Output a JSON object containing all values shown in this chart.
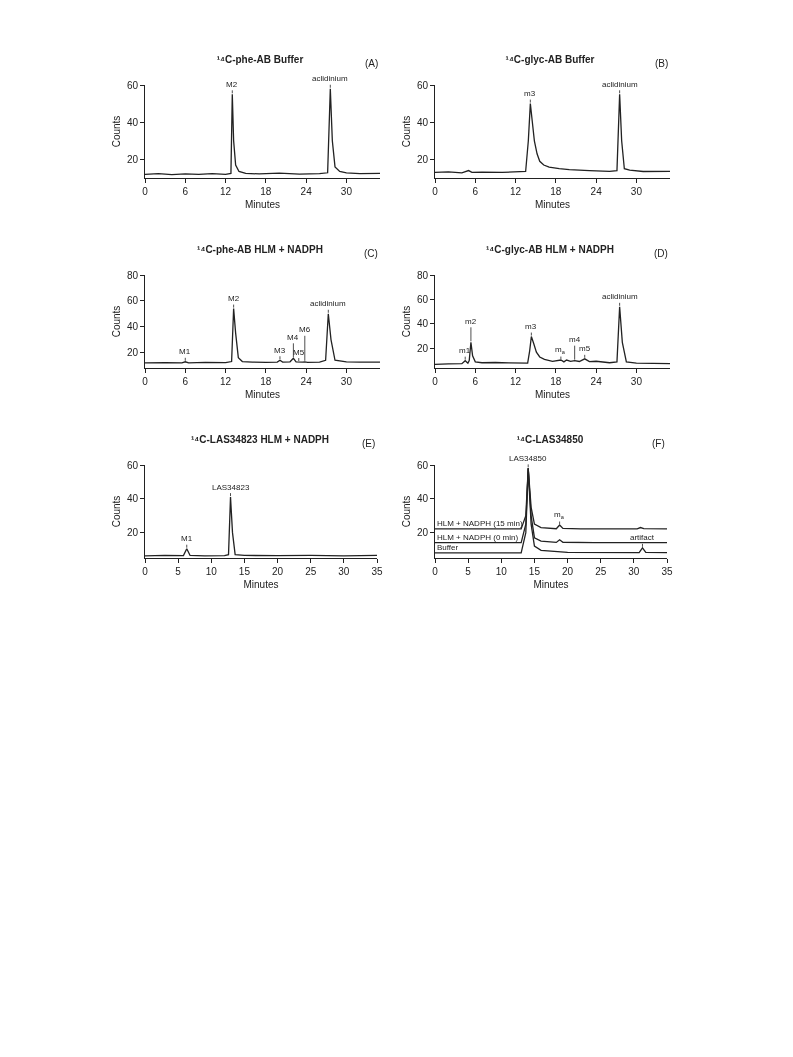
{
  "chart_data": [
    {
      "type": "line",
      "title": "¹⁴C-phe-AB Buffer",
      "xlabel": "Minutes",
      "ylabel": "Counts",
      "xlim": [
        0,
        35
      ],
      "xticks": [
        0,
        6,
        12,
        18,
        24,
        30
      ],
      "ylim": [
        10,
        60
      ],
      "yticks": [
        20,
        40,
        60
      ],
      "series": [
        {
          "color": "#222222",
          "x": [
            0,
            2,
            4,
            6,
            8,
            10,
            12,
            12.8,
            13.0,
            13.2,
            13.5,
            14,
            15,
            17,
            20,
            23,
            26,
            27.2,
            27.6,
            27.9,
            28.3,
            29,
            30,
            32,
            35
          ],
          "values": [
            12,
            12.3,
            11.8,
            12.2,
            12,
            12.3,
            12,
            12.5,
            55,
            30,
            17,
            13.5,
            12.5,
            12.2,
            12.6,
            12.1,
            12.3,
            12.8,
            58,
            30,
            16,
            13.5,
            12.8,
            12.3,
            12.5
          ]
        }
      ],
      "annotations": [
        "(A)",
        {
          "text": "M2",
          "x": 13.0,
          "y": 55
        },
        {
          "text": "aclidinium",
          "x": 27.6,
          "y": 58
        }
      ]
    },
    {
      "type": "line",
      "title": "¹⁴C-glyc-AB Buffer",
      "xlabel": "Minutes",
      "ylabel": "Counts",
      "xlim": [
        0,
        35
      ],
      "xticks": [
        0,
        6,
        12,
        18,
        24,
        30
      ],
      "ylim": [
        10,
        60
      ],
      "yticks": [
        20,
        40,
        60
      ],
      "series": [
        {
          "color": "#222222",
          "x": [
            0,
            2,
            4,
            5,
            5.5,
            7,
            10,
            13.5,
            13.9,
            14.2,
            14.5,
            14.8,
            15.2,
            15.6,
            16.2,
            17,
            18.5,
            20,
            23,
            26,
            27.1,
            27.5,
            27.8,
            28.2,
            29,
            31,
            35
          ],
          "values": [
            13,
            13.3,
            12.8,
            14,
            13,
            13.2,
            13,
            13.5,
            30,
            50,
            40,
            30,
            23,
            19,
            17,
            15.8,
            15,
            14.5,
            14,
            13.6,
            14,
            55,
            30,
            15,
            14.2,
            13.5,
            13.6
          ]
        }
      ],
      "annotations": [
        "(B)",
        {
          "text": "m3",
          "x": 14.2,
          "y": 50
        },
        {
          "text": "aclidinium",
          "x": 27.5,
          "y": 55
        }
      ]
    },
    {
      "type": "line",
      "title": "¹⁴C-phe-AB HLM + NADPH",
      "xlabel": "Minutes",
      "ylabel": "Counts",
      "xlim": [
        0,
        35
      ],
      "xticks": [
        0,
        6,
        12,
        18,
        24,
        30
      ],
      "ylim": [
        8,
        80
      ],
      "yticks": [
        20,
        40,
        60,
        80
      ],
      "series": [
        {
          "color": "#222222",
          "x": [
            0,
            3,
            5.5,
            6,
            6.5,
            9,
            12,
            12.9,
            13.2,
            13.5,
            13.9,
            14.5,
            16,
            18,
            19.7,
            20.1,
            20.5,
            21.6,
            22.1,
            22.5,
            23.5,
            23.8,
            24.2,
            26,
            26.9,
            27.3,
            27.7,
            28.3,
            30,
            32,
            35
          ],
          "values": [
            12,
            12.2,
            12,
            12.8,
            12,
            12.3,
            12.2,
            13,
            54,
            35,
            16,
            13,
            12.5,
            12.4,
            12.6,
            14,
            12.6,
            12.8,
            15.5,
            12.8,
            12.5,
            12.8,
            12.4,
            12.6,
            14,
            50,
            30,
            14,
            12.8,
            12.6,
            12.5
          ]
        }
      ],
      "annotations": [
        "(C)",
        {
          "text": "M1",
          "x": 6,
          "y": 12.8
        },
        {
          "text": "M2",
          "x": 13.2,
          "y": 54
        },
        {
          "text": "M3",
          "x": 20.1,
          "y": 14
        },
        {
          "text": "M4",
          "x": 22.1,
          "y": 15.5
        },
        {
          "text": "M5",
          "x": 22.9,
          "y": 12.6
        },
        {
          "text": "M6",
          "x": 23.8,
          "y": 12.8
        },
        {
          "text": "aclidinium",
          "x": 27.3,
          "y": 50
        }
      ]
    },
    {
      "type": "line",
      "title": "¹⁴C-glyc-AB HLM + NADPH",
      "xlabel": "Minutes",
      "ylabel": "Counts",
      "xlim": [
        0,
        35
      ],
      "xticks": [
        0,
        6,
        12,
        18,
        24,
        30
      ],
      "ylim": [
        4,
        80
      ],
      "yticks": [
        20,
        40,
        60,
        80
      ],
      "series": [
        {
          "color": "#222222",
          "x": [
            0,
            2,
            4,
            4.5,
            4.9,
            5.1,
            5.35,
            5.6,
            6,
            7,
            9,
            11,
            13.8,
            14.1,
            14.35,
            14.7,
            15.1,
            15.6,
            16.3,
            17.5,
            18.75,
            19.2,
            19.6,
            20.2,
            20.8,
            21.5,
            22.3,
            23,
            24,
            26,
            27.1,
            27.5,
            27.9,
            28.5,
            30,
            35
          ],
          "values": [
            7,
            7.3,
            7.5,
            10,
            8,
            10,
            25,
            14,
            9,
            8.3,
            8.5,
            8.2,
            8,
            18,
            29.7,
            24,
            17,
            13,
            11,
            9.5,
            10.5,
            9,
            10.5,
            9.5,
            10,
            9.3,
            11.5,
            9.2,
            9.5,
            8.3,
            9,
            54,
            25,
            9,
            8,
            7.5
          ]
        }
      ],
      "annotations": [
        "(D)",
        {
          "text": "m1",
          "x": 4.5,
          "y": 10
        },
        {
          "text": "m2",
          "x": 5.35,
          "y": 25
        },
        {
          "text": "m3",
          "x": 14.35,
          "y": 29.7
        },
        {
          "text": "m$_{a}$",
          "x": 18.75,
          "y": 10.5
        },
        {
          "text": "m4",
          "x": 20.8,
          "y": 10
        },
        {
          "text": "m5",
          "x": 22.3,
          "y": 11.5
        },
        {
          "text": "aclidinium",
          "x": 27.5,
          "y": 54
        }
      ]
    },
    {
      "type": "line",
      "title": "¹⁴C-LAS34823 HLM + NADPH",
      "xlabel": "Minutes",
      "ylabel": "Counts",
      "xlim": [
        0,
        35
      ],
      "xticks": [
        0,
        5,
        10,
        15,
        20,
        25,
        30,
        35
      ],
      "ylim": [
        5,
        60
      ],
      "yticks": [
        20,
        40,
        60
      ],
      "series": [
        {
          "color": "#222222",
          "x": [
            0,
            3,
            5.8,
            6.3,
            6.8,
            9,
            12,
            12.6,
            12.9,
            13.2,
            13.6,
            15,
            20,
            25,
            30,
            35
          ],
          "values": [
            6.3,
            6.5,
            6.4,
            10.5,
            6.5,
            6.3,
            6.4,
            7,
            41,
            20,
            7,
            6.5,
            6.4,
            6.5,
            6.3,
            6.5
          ]
        }
      ],
      "annotations": [
        "(E)",
        {
          "text": "M1",
          "x": 6.3,
          "y": 10.5
        },
        {
          "text": "LAS34823",
          "x": 12.9,
          "y": 41
        }
      ]
    },
    {
      "type": "line",
      "title": "¹⁴C-LAS34850",
      "xlabel": "Minutes",
      "ylabel": "Counts",
      "xlim": [
        0,
        35
      ],
      "xticks": [
        0,
        5,
        10,
        15,
        20,
        25,
        30,
        35
      ],
      "ylim": [
        5,
        60
      ],
      "yticks": [
        20,
        40,
        60
      ],
      "series": [
        {
          "name": "HLM + NADPH (15 min)",
          "color": "#222222",
          "x": [
            0,
            13,
            13.7,
            14.06,
            14.5,
            15,
            16,
            18.3,
            18.8,
            19.3,
            22,
            26,
            30.5,
            31,
            31.5,
            35
          ],
          "values": [
            22.2,
            22.2,
            30,
            58,
            35,
            25,
            23,
            22.3,
            24.5,
            22.5,
            22.2,
            22.2,
            22.2,
            23,
            22.4,
            22.2
          ]
        },
        {
          "name": "HLM + NADPH (0 min)",
          "color": "#222222",
          "x": [
            0,
            13,
            13.7,
            14.06,
            14.5,
            15,
            16,
            18.3,
            18.8,
            19.3,
            24,
            35
          ],
          "values": [
            14.1,
            14.1,
            25,
            58,
            30,
            17,
            15,
            14.2,
            15.8,
            14.3,
            14.1,
            14.1
          ]
        },
        {
          "name": "Buffer",
          "color": "#222222",
          "x": [
            0,
            13,
            13.7,
            14.06,
            14.5,
            15,
            16,
            20,
            30.8,
            31.3,
            31.8,
            35
          ],
          "values": [
            8,
            8,
            20,
            58,
            25,
            12,
            9.5,
            8.3,
            8.2,
            11,
            8.3,
            8.2
          ]
        }
      ],
      "annotations": [
        "(F)",
        {
          "text": "LAS34850",
          "x": 14.06,
          "y": 58
        },
        {
          "text": "m$_{a}$",
          "x": 18.8,
          "y": 24.5
        },
        {
          "text": "artifact",
          "x": 31.3,
          "y": 11
        }
      ]
    }
  ]
}
